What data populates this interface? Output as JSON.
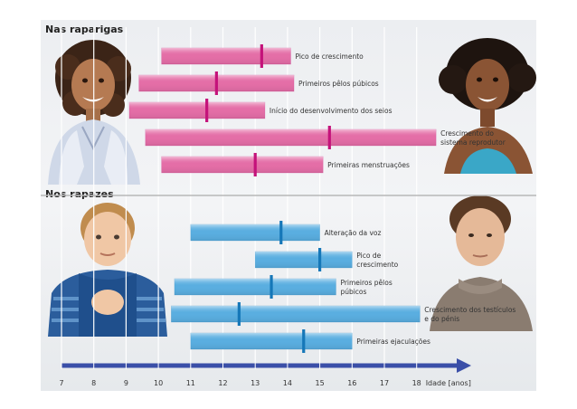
{
  "sections": [
    {
      "id": "girls",
      "title": "Nas raparigas",
      "bar_color": "#e46ea7",
      "marker_color": "#c4127a",
      "bars": [
        {
          "label": [
            "Pico de crescimento"
          ],
          "start": 10.1,
          "end": 14.1,
          "peak": 13.2
        },
        {
          "label": [
            "Primeiros pêlos púbicos"
          ],
          "start": 9.4,
          "end": 14.2,
          "peak": 11.8
        },
        {
          "label": [
            "Início do desenvolvimento dos seios"
          ],
          "start": 9.1,
          "end": 13.3,
          "peak": 11.5
        },
        {
          "label": [
            "Crescimento do",
            "sistema reprodutor"
          ],
          "start": 9.6,
          "end": 18.6,
          "peak": 15.3
        },
        {
          "label": [
            "Primeiras menstruações"
          ],
          "start": 10.1,
          "end": 15.1,
          "peak": 13.0
        }
      ]
    },
    {
      "id": "boys",
      "title": "Nos rapazes",
      "bar_color": "#5aaee0",
      "marker_color": "#1577b8",
      "bars": [
        {
          "label": [
            "Alteração da voz"
          ],
          "start": 11.0,
          "end": 15.0,
          "peak": 13.8
        },
        {
          "label": [
            "Pico de",
            "crescimento"
          ],
          "start": 13.0,
          "end": 16.0,
          "peak": 15.0
        },
        {
          "label": [
            "Primeiros pêlos",
            "púbicos"
          ],
          "start": 10.5,
          "end": 15.5,
          "peak": 13.5
        },
        {
          "label": [
            "Crescimento dos testículos",
            "e do pénis"
          ],
          "start": 10.4,
          "end": 18.1,
          "peak": 12.5
        },
        {
          "label": [
            "Primeiras ejaculações"
          ],
          "start": 11.0,
          "end": 16.0,
          "peak": 14.5
        }
      ]
    }
  ],
  "axis": {
    "ticks": [
      7,
      8,
      9,
      10,
      11,
      12,
      13,
      14,
      15,
      16,
      17,
      18
    ],
    "label": "Idade [anos]",
    "arrow_color": "#3b4fa8"
  },
  "people": {
    "girl_child": "girl-child-photo",
    "young_woman": "young-woman-photo",
    "boy_child": "boy-child-photo",
    "young_man": "young-man-photo"
  }
}
